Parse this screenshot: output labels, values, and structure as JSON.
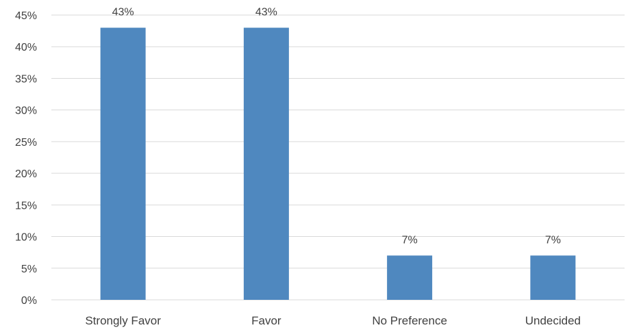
{
  "chart_data": {
    "type": "bar",
    "title": "",
    "xlabel": "",
    "ylabel": "",
    "categories": [
      "Strongly Favor",
      "Favor",
      "No Preference",
      "Undecided"
    ],
    "values": [
      43,
      43,
      7,
      7
    ],
    "data_labels": [
      "43%",
      "43%",
      "7%",
      "7%"
    ],
    "ylim": [
      0,
      45
    ],
    "yticks": [
      0,
      5,
      10,
      15,
      20,
      25,
      30,
      35,
      40,
      45
    ],
    "ytick_labels": [
      "0%",
      "5%",
      "10%",
      "15%",
      "20%",
      "25%",
      "30%",
      "35%",
      "40%",
      "45%"
    ],
    "grid": true,
    "legend": "none",
    "bar_color": "#4f88bf",
    "grid_color": "#d9d9d9"
  }
}
